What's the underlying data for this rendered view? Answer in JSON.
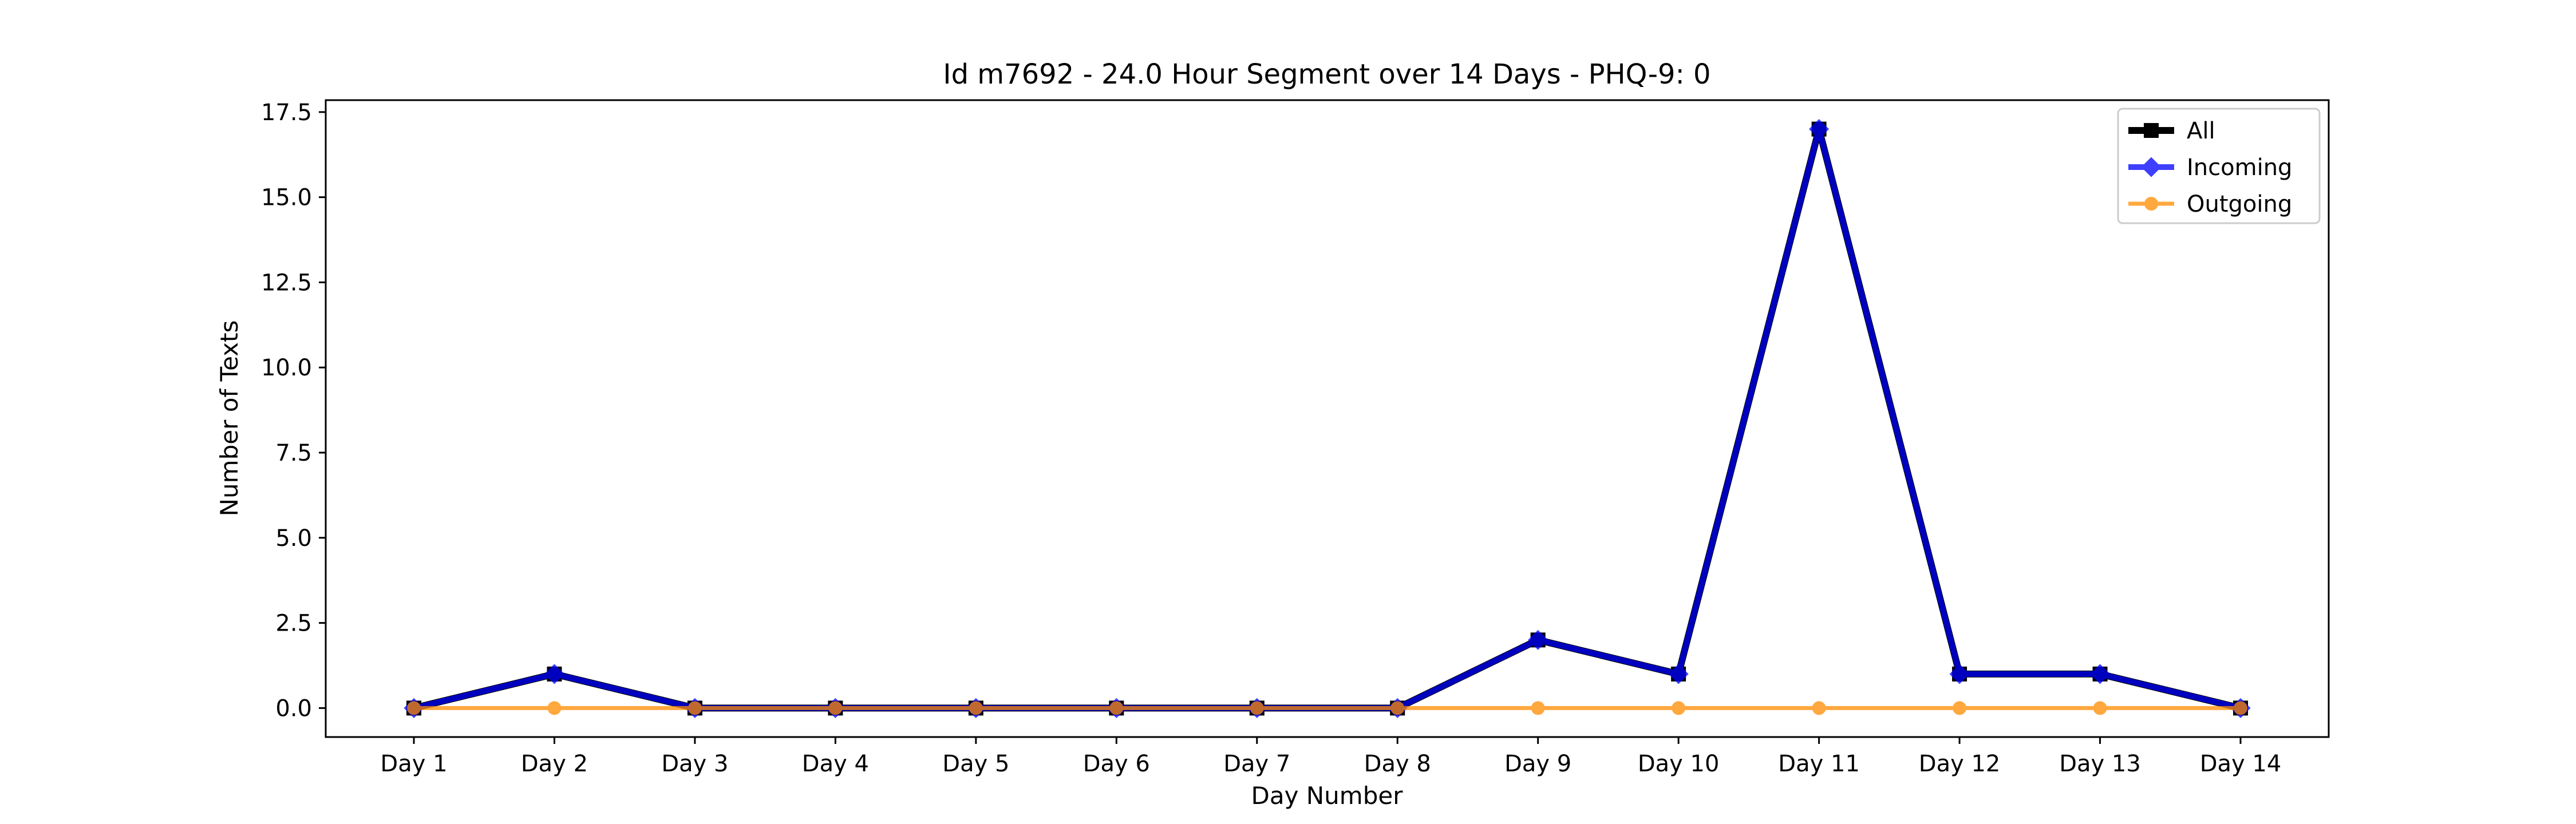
{
  "chart_data": {
    "type": "line",
    "title": "Id m7692 - 24.0 Hour Segment over 14 Days - PHQ-9: 0",
    "xlabel": "Day Number",
    "ylabel": "Number of Texts",
    "categories": [
      "Day 1",
      "Day 2",
      "Day 3",
      "Day 4",
      "Day 5",
      "Day 6",
      "Day 7",
      "Day 8",
      "Day 9",
      "Day 10",
      "Day 11",
      "Day 12",
      "Day 13",
      "Day 14"
    ],
    "ylim": [
      -0.85,
      17.85
    ],
    "yticks": [
      0.0,
      2.5,
      5.0,
      7.5,
      10.0,
      12.5,
      15.0,
      17.5
    ],
    "ytick_labels": [
      "0.0",
      "2.5",
      "5.0",
      "7.5",
      "10.0",
      "12.5",
      "15.0",
      "17.5"
    ],
    "grid": false,
    "legend_position": "top-right",
    "series": [
      {
        "name": "All",
        "color": "#000000",
        "marker": "square",
        "values": [
          0,
          1,
          0,
          0,
          0,
          0,
          0,
          0,
          2,
          1,
          17,
          1,
          1,
          0
        ]
      },
      {
        "name": "Incoming",
        "color": "#0000ff",
        "marker": "diamond",
        "values": [
          0,
          1,
          0,
          0,
          0,
          0,
          0,
          0,
          2,
          1,
          17,
          1,
          1,
          0
        ]
      },
      {
        "name": "Outgoing",
        "color": "#ff8c00",
        "marker": "circle",
        "values": [
          0,
          0,
          0,
          0,
          0,
          0,
          0,
          0,
          0,
          0,
          0,
          0,
          0,
          0
        ]
      }
    ]
  }
}
